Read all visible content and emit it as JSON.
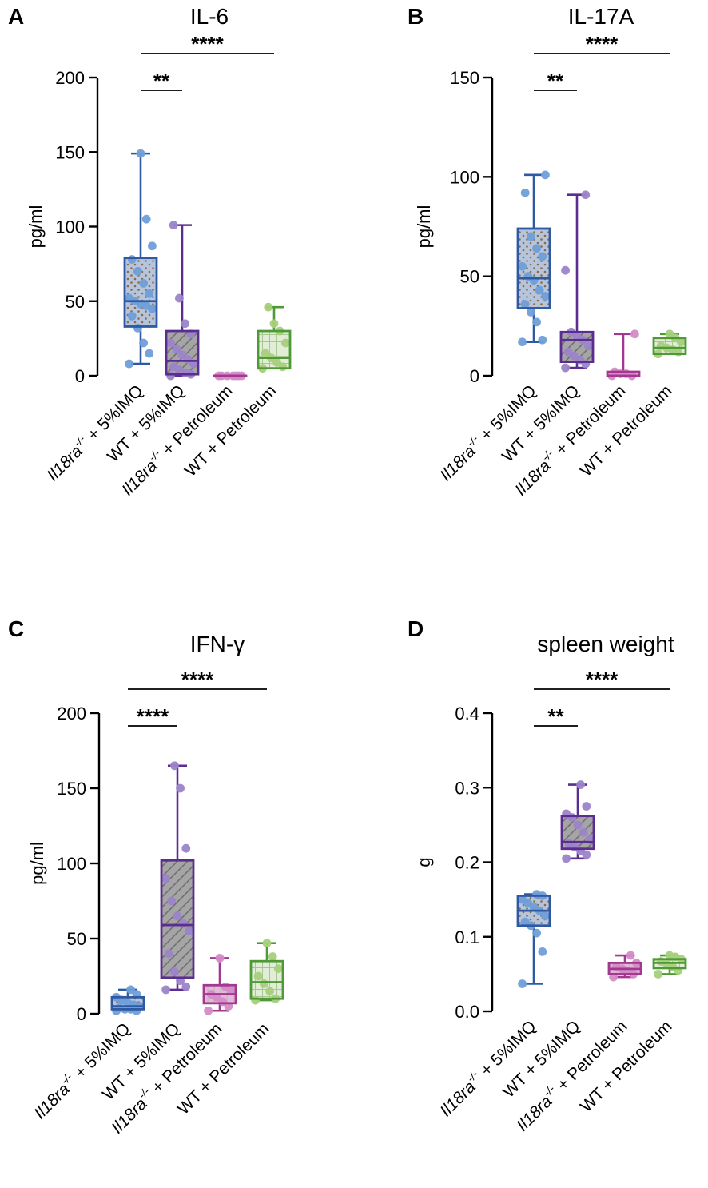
{
  "figure": {
    "panel_letters": [
      "A",
      "B",
      "C",
      "D"
    ]
  },
  "colors": {
    "blue": "#2f5aa3",
    "blue_fill": "#b6c4dc",
    "blue_dot": "#6f9fd8",
    "purple": "#5b2d91",
    "purple_fill": "#a4a4a4",
    "purple_dot": "#9c84c9",
    "pink": "#a4378f",
    "pink_fill": "#e2b9d8",
    "pink_dot": "#d38bc7",
    "green": "#4f9a37",
    "green_fill": "#e1edd6",
    "green_dot": "#a5d07c"
  },
  "categories": [
    {
      "italic": "Il18ra",
      "sup": "-/-",
      "rest": " + 5%IMQ"
    },
    {
      "italic": "",
      "sup": "",
      "rest": "WT + 5%IMQ"
    },
    {
      "italic": "Il18ra",
      "sup": "-/-",
      "rest": " + Petroleum"
    },
    {
      "italic": "",
      "sup": "",
      "rest": "WT + Petroleum"
    }
  ],
  "chart_data": [
    {
      "type": "box",
      "panel": "A",
      "title": "IL-6",
      "ylabel": "pg/ml",
      "ylim": [
        0,
        200
      ],
      "yticks": [
        0,
        50,
        100,
        150,
        200
      ],
      "ytick_labels": [
        "0",
        "50",
        "100",
        "150",
        "200"
      ],
      "series": [
        {
          "name": "Il18ra-/- + 5%IMQ",
          "min": 8,
          "q1": 33,
          "median": 50,
          "q3": 79,
          "max": 149,
          "points": [
            8,
            15,
            22,
            32,
            40,
            45,
            47,
            48,
            50,
            52,
            55,
            62,
            70,
            78,
            87,
            105,
            149
          ]
        },
        {
          "name": "WT + 5%IMQ",
          "min": 0,
          "q1": 1,
          "median": 10,
          "q3": 30,
          "max": 101,
          "points": [
            0,
            1,
            2,
            4,
            6,
            8,
            11,
            14,
            18,
            22,
            28,
            35,
            52,
            101
          ]
        },
        {
          "name": "Il18ra-/- + Petroleum",
          "min": 0,
          "q1": 0,
          "median": 0,
          "q3": 0,
          "max": 0,
          "points": [
            0,
            0,
            0,
            0,
            0,
            0,
            0
          ]
        },
        {
          "name": "WT + Petroleum",
          "min": 5,
          "q1": 5,
          "median": 12,
          "q3": 30,
          "max": 46,
          "points": [
            5,
            6,
            9,
            12,
            15,
            22,
            30,
            35,
            46
          ]
        }
      ],
      "significance": [
        {
          "label": "****",
          "from": 0,
          "to": 3,
          "level": 0
        },
        {
          "label": "**",
          "from": 0,
          "to": 1,
          "level": 1
        }
      ]
    },
    {
      "type": "box",
      "panel": "B",
      "title": "IL-17A",
      "ylabel": "pg/ml",
      "ylim": [
        0,
        150
      ],
      "yticks": [
        0,
        50,
        100,
        150
      ],
      "ytick_labels": [
        "0",
        "50",
        "100",
        "150"
      ],
      "series": [
        {
          "name": "Il18ra-/- + 5%IMQ",
          "min": 17,
          "q1": 34,
          "median": 49,
          "q3": 74,
          "max": 101,
          "points": [
            17,
            18,
            27,
            32,
            36,
            40,
            43,
            48,
            50,
            55,
            60,
            64,
            70,
            92,
            101
          ]
        },
        {
          "name": "WT + 5%IMQ",
          "min": 4,
          "q1": 7,
          "median": 18,
          "q3": 22,
          "max": 91,
          "points": [
            4,
            6,
            8,
            10,
            12,
            15,
            18,
            20,
            22,
            53,
            91
          ]
        },
        {
          "name": "Il18ra-/- + Petroleum",
          "min": 0,
          "q1": 0,
          "median": 0,
          "q3": 2,
          "max": 21,
          "points": [
            0,
            0,
            1,
            1,
            2,
            21
          ]
        },
        {
          "name": "WT + Petroleum",
          "min": 11,
          "q1": 11,
          "median": 14,
          "q3": 19,
          "max": 21,
          "points": [
            11,
            12,
            13,
            14,
            15,
            17,
            19,
            21
          ]
        }
      ],
      "significance": [
        {
          "label": "****",
          "from": 0,
          "to": 3,
          "level": 0
        },
        {
          "label": "**",
          "from": 0,
          "to": 1,
          "level": 1
        }
      ]
    },
    {
      "type": "box",
      "panel": "C",
      "title": "IFN-γ",
      "ylabel": "pg/ml",
      "ylim": [
        0,
        200
      ],
      "yticks": [
        0,
        50,
        100,
        150,
        200
      ],
      "ytick_labels": [
        "0",
        "50",
        "100",
        "150",
        "200"
      ],
      "series": [
        {
          "name": "Il18ra-/- + 5%IMQ",
          "min": 2,
          "q1": 3,
          "median": 5,
          "q3": 11,
          "max": 16,
          "points": [
            2,
            2,
            3,
            3,
            4,
            5,
            6,
            7,
            9,
            11,
            13,
            16
          ]
        },
        {
          "name": "WT + 5%IMQ",
          "min": 16,
          "q1": 24,
          "median": 59,
          "q3": 102,
          "max": 165,
          "points": [
            16,
            18,
            22,
            28,
            40,
            55,
            60,
            65,
            75,
            90,
            110,
            150,
            165
          ]
        },
        {
          "name": "Il18ra-/- + Petroleum",
          "min": 2,
          "q1": 7,
          "median": 13,
          "q3": 19,
          "max": 37,
          "points": [
            2,
            5,
            8,
            11,
            13,
            15,
            18,
            37
          ]
        },
        {
          "name": "WT + Petroleum",
          "min": 9,
          "q1": 10,
          "median": 21,
          "q3": 35,
          "max": 47,
          "points": [
            9,
            10,
            15,
            20,
            25,
            30,
            38,
            47
          ]
        }
      ],
      "significance": [
        {
          "label": "****",
          "from": 0,
          "to": 3,
          "level": 0
        },
        {
          "label": "****",
          "from": 0,
          "to": 1,
          "level": 1
        }
      ]
    },
    {
      "type": "box",
      "panel": "D",
      "title": "spleen weight",
      "ylabel": "g",
      "ylim": [
        0,
        0.4
      ],
      "yticks": [
        0,
        0.1,
        0.2,
        0.3,
        0.4
      ],
      "ytick_labels": [
        "0.0",
        "0.1",
        "0.2",
        "0.3",
        "0.4"
      ],
      "series": [
        {
          "name": "Il18ra-/- + 5%IMQ",
          "min": 0.037,
          "q1": 0.115,
          "median": 0.135,
          "q3": 0.155,
          "max": 0.157,
          "points": [
            0.037,
            0.08,
            0.105,
            0.115,
            0.12,
            0.128,
            0.135,
            0.14,
            0.145,
            0.15,
            0.155,
            0.157
          ]
        },
        {
          "name": "WT + 5%IMQ",
          "min": 0.205,
          "q1": 0.218,
          "median": 0.227,
          "q3": 0.262,
          "max": 0.304,
          "points": [
            0.205,
            0.21,
            0.215,
            0.22,
            0.225,
            0.23,
            0.24,
            0.25,
            0.26,
            0.265,
            0.275,
            0.304
          ]
        },
        {
          "name": "Il18ra-/- + Petroleum",
          "min": 0.046,
          "q1": 0.05,
          "median": 0.057,
          "q3": 0.065,
          "max": 0.075,
          "points": [
            0.046,
            0.05,
            0.054,
            0.057,
            0.06,
            0.065,
            0.075
          ]
        },
        {
          "name": "WT + Petroleum",
          "min": 0.05,
          "q1": 0.058,
          "median": 0.065,
          "q3": 0.07,
          "max": 0.075,
          "points": [
            0.05,
            0.055,
            0.06,
            0.064,
            0.067,
            0.07,
            0.073,
            0.075
          ]
        }
      ],
      "significance": [
        {
          "label": "****",
          "from": 0,
          "to": 3,
          "level": 0
        },
        {
          "label": "**",
          "from": 0,
          "to": 1,
          "level": 1
        }
      ]
    }
  ]
}
